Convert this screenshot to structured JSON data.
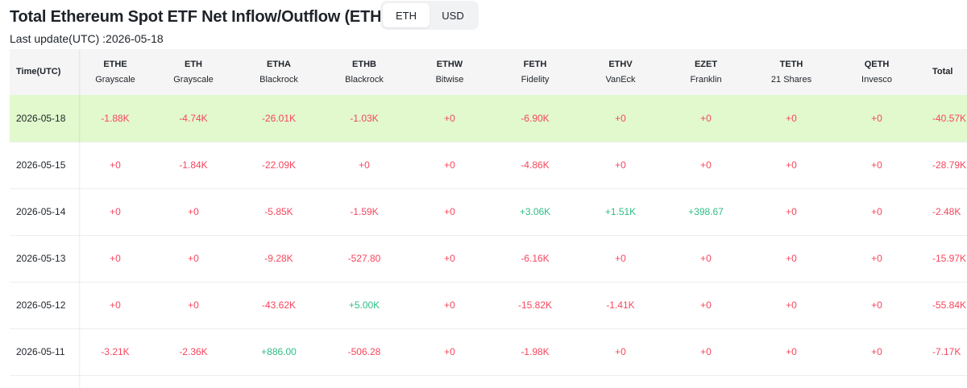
{
  "header": {
    "title": "Total Ethereum Spot ETF Net Inflow/Outflow (ETH)",
    "units": [
      {
        "label": "ETH",
        "active": true
      },
      {
        "label": "USD",
        "active": false
      }
    ],
    "last_update": "Last update(UTC) :2026-05-18"
  },
  "table": {
    "time_header": "Time(UTC)",
    "total_header": "Total",
    "funds": [
      {
        "ticker": "ETHE",
        "issuer": "Grayscale"
      },
      {
        "ticker": "ETH",
        "issuer": "Grayscale"
      },
      {
        "ticker": "ETHA",
        "issuer": "Blackrock"
      },
      {
        "ticker": "ETHB",
        "issuer": "Blackrock"
      },
      {
        "ticker": "ETHW",
        "issuer": "Bitwise"
      },
      {
        "ticker": "FETH",
        "issuer": "Fidelity"
      },
      {
        "ticker": "ETHV",
        "issuer": "VanEck"
      },
      {
        "ticker": "EZET",
        "issuer": "Franklin"
      },
      {
        "ticker": "TETH",
        "issuer": "21 Shares"
      },
      {
        "ticker": "QETH",
        "issuer": "Invesco"
      }
    ],
    "rows": [
      {
        "date": "2026-05-18",
        "values": [
          "-1.88K",
          "-4.74K",
          "-26.01K",
          "-1.03K",
          "+0",
          "-6.90K",
          "+0",
          "+0",
          "+0",
          "+0"
        ],
        "total": "-40.57K"
      },
      {
        "date": "2026-05-15",
        "values": [
          "+0",
          "-1.84K",
          "-22.09K",
          "+0",
          "+0",
          "-4.86K",
          "+0",
          "+0",
          "+0",
          "+0"
        ],
        "total": "-28.79K"
      },
      {
        "date": "2026-05-14",
        "values": [
          "+0",
          "+0",
          "-5.85K",
          "-1.59K",
          "+0",
          "+3.06K",
          "+1.51K",
          "+398.67",
          "+0",
          "+0"
        ],
        "total": "-2.48K"
      },
      {
        "date": "2026-05-13",
        "values": [
          "+0",
          "+0",
          "-9.28K",
          "-527.80",
          "+0",
          "-6.16K",
          "+0",
          "+0",
          "+0",
          "+0"
        ],
        "total": "-15.97K"
      },
      {
        "date": "2026-05-12",
        "values": [
          "+0",
          "+0",
          "-43.62K",
          "+5.00K",
          "+0",
          "-15.82K",
          "-1.41K",
          "+0",
          "+0",
          "+0"
        ],
        "total": "-55.84K"
      },
      {
        "date": "2026-05-11",
        "values": [
          "-3.21K",
          "-2.36K",
          "+886.00",
          "-506.28",
          "+0",
          "-1.98K",
          "+0",
          "+0",
          "+0",
          "+0"
        ],
        "total": "-7.17K"
      }
    ]
  },
  "colors": {
    "negative": "#f6465d",
    "positive": "#2ebd85",
    "highlight_row": "#e1f9cd",
    "header_bg": "#f5f5f5"
  }
}
